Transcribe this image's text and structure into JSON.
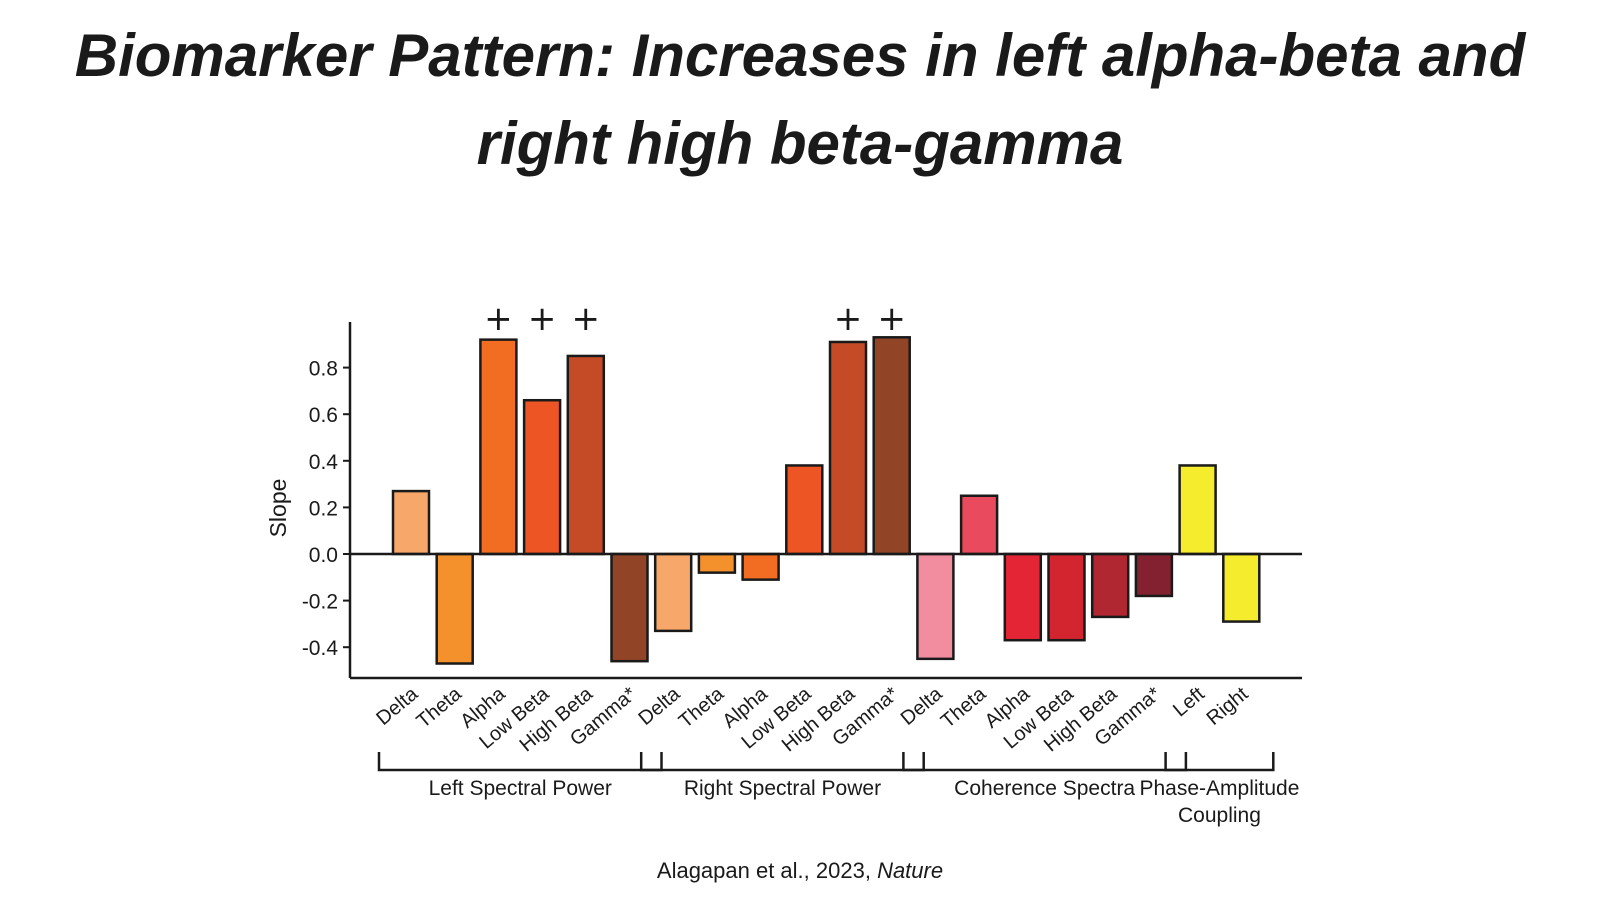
{
  "title": {
    "line1": "Biomarker Pattern: Increases in left alpha-beta and",
    "line2": "right high beta-gamma"
  },
  "citation": {
    "authors": "Alagapan et al., 2023, ",
    "journal": "Nature"
  },
  "chart_data": {
    "type": "bar",
    "ylabel": "Slope",
    "ylim": [
      -0.5,
      1.0
    ],
    "yticks": [
      -0.4,
      -0.2,
      0.0,
      0.2,
      0.4,
      0.6,
      0.8
    ],
    "ytick_labels": [
      "-0.4",
      "-0.2",
      "0.0",
      "0.2",
      "0.4",
      "0.6",
      "0.8"
    ],
    "significance_marker": "+",
    "groups": [
      {
        "name": "Left Spectral Power",
        "name_lines": [
          "Left Spectral Power"
        ],
        "bars": [
          {
            "label": "Delta",
            "value": 0.27,
            "color": "#f7a76a",
            "sig": false
          },
          {
            "label": "Theta",
            "value": -0.47,
            "color": "#f5912c",
            "sig": false
          },
          {
            "label": "Alpha",
            "value": 0.92,
            "color": "#f26d21",
            "sig": true
          },
          {
            "label": "Low Beta",
            "value": 0.66,
            "color": "#ee5525",
            "sig": true
          },
          {
            "label": "High Beta",
            "value": 0.85,
            "color": "#c44b26",
            "sig": true
          },
          {
            "label": "Gamma*",
            "value": -0.46,
            "color": "#924426",
            "sig": false
          }
        ]
      },
      {
        "name": "Right Spectral Power",
        "name_lines": [
          "Right Spectral Power"
        ],
        "bars": [
          {
            "label": "Delta",
            "value": -0.33,
            "color": "#f7a76a",
            "sig": false
          },
          {
            "label": "Theta",
            "value": -0.08,
            "color": "#f5912c",
            "sig": false
          },
          {
            "label": "Alpha",
            "value": -0.11,
            "color": "#f26d21",
            "sig": false
          },
          {
            "label": "Low Beta",
            "value": 0.38,
            "color": "#ee5525",
            "sig": false
          },
          {
            "label": "High Beta",
            "value": 0.91,
            "color": "#c44b26",
            "sig": true
          },
          {
            "label": "Gamma*",
            "value": 0.93,
            "color": "#924426",
            "sig": true
          }
        ]
      },
      {
        "name": "Coherence Spectra",
        "name_lines": [
          "Coherence Spectra"
        ],
        "bars": [
          {
            "label": "Delta",
            "value": -0.45,
            "color": "#f28d9f",
            "sig": false
          },
          {
            "label": "Theta",
            "value": 0.25,
            "color": "#ea4a5d",
            "sig": false
          },
          {
            "label": "Alpha",
            "value": -0.37,
            "color": "#e42535",
            "sig": false
          },
          {
            "label": "Low Beta",
            "value": -0.37,
            "color": "#d32530",
            "sig": false
          },
          {
            "label": "High Beta",
            "value": -0.27,
            "color": "#b02731",
            "sig": false
          },
          {
            "label": "Gamma*",
            "value": -0.18,
            "color": "#842130",
            "sig": false
          }
        ]
      },
      {
        "name": "Phase-Amplitude Coupling",
        "name_lines": [
          "Phase-Amplitude",
          "Coupling"
        ],
        "bars": [
          {
            "label": "Left",
            "value": 0.38,
            "color": "#f4ec2c",
            "sig": false
          },
          {
            "label": "Right",
            "value": -0.29,
            "color": "#f4ec2c",
            "sig": false
          }
        ]
      }
    ]
  }
}
